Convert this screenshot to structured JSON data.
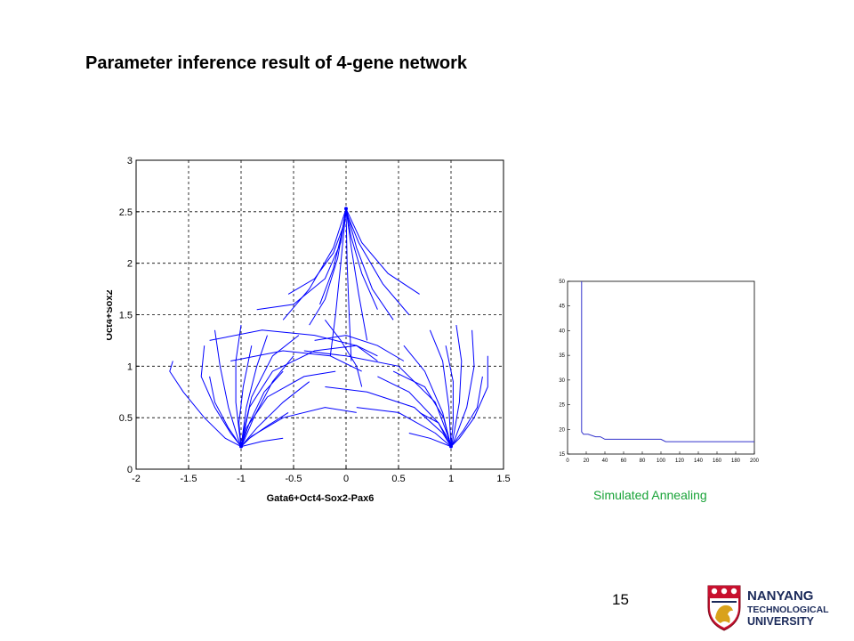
{
  "slide": {
    "title": "Parameter inference result of 4-gene network",
    "page_number": "15",
    "caption": "Simulated Annealing"
  },
  "logo": {
    "line1": "NANYANG",
    "line2": "TECHNOLOGICAL",
    "line3": "UNIVERSITY",
    "colors": {
      "red": "#c8102e",
      "navy": "#1b2a5a",
      "gold": "#d9a21b"
    }
  },
  "chart_data": [
    {
      "type": "line",
      "title": "",
      "xlabel": "Gata6+Oct4-Sox2-Pax6",
      "ylabel": "Oct4+Sox2",
      "xlim": [
        -2,
        1.5
      ],
      "ylim": [
        0,
        3
      ],
      "xticks": [
        "-2",
        "-1.5",
        "-1",
        "-0.5",
        "0",
        "0.5",
        "1",
        "1.5"
      ],
      "yticks": [
        "0",
        "0.5",
        "1",
        "1.5",
        "2",
        "2.5",
        "3"
      ],
      "grid": true,
      "grid_style": "dotted",
      "line_color": "#0000ff",
      "attractors": [
        [
          0,
          2.53
        ],
        [
          -1,
          0.22
        ],
        [
          1,
          0.22
        ]
      ],
      "series": [
        {
          "values": [
            [
              -1.65,
              1.05
            ],
            [
              -1.68,
              0.95
            ],
            [
              -1.55,
              0.75
            ],
            [
              -1.35,
              0.5
            ],
            [
              -1.15,
              0.3
            ],
            [
              -1,
              0.22
            ]
          ]
        },
        {
          "values": [
            [
              -1.35,
              1.2
            ],
            [
              -1.38,
              0.9
            ],
            [
              -1.25,
              0.6
            ],
            [
              -1.1,
              0.35
            ],
            [
              -1,
              0.22
            ]
          ]
        },
        {
          "values": [
            [
              -1.25,
              1.35
            ],
            [
              -1.2,
              1.0
            ],
            [
              -1.12,
              0.6
            ],
            [
              -1.03,
              0.3
            ],
            [
              -1,
              0.22
            ]
          ]
        },
        {
          "values": [
            [
              -1.0,
              1.4
            ],
            [
              -1.05,
              1.05
            ],
            [
              -1.05,
              0.65
            ],
            [
              -1.01,
              0.3
            ],
            [
              -1,
              0.22
            ]
          ]
        },
        {
          "values": [
            [
              -0.75,
              1.3
            ],
            [
              -0.85,
              1.0
            ],
            [
              -0.95,
              0.6
            ],
            [
              -0.99,
              0.3
            ],
            [
              -1,
              0.22
            ]
          ]
        },
        {
          "values": [
            [
              -0.5,
              1.1
            ],
            [
              -0.7,
              0.85
            ],
            [
              -0.88,
              0.5
            ],
            [
              -0.97,
              0.28
            ],
            [
              -1,
              0.22
            ]
          ]
        },
        {
          "values": [
            [
              -0.35,
              0.85
            ],
            [
              -0.6,
              0.65
            ],
            [
              -0.85,
              0.4
            ],
            [
              -1,
              0.22
            ]
          ]
        },
        {
          "values": [
            [
              -0.55,
              0.55
            ],
            [
              -0.75,
              0.42
            ],
            [
              -0.92,
              0.3
            ],
            [
              -1,
              0.22
            ]
          ]
        },
        {
          "values": [
            [
              -0.6,
              0.3
            ],
            [
              -0.8,
              0.27
            ],
            [
              -1,
              0.22
            ]
          ]
        },
        {
          "values": [
            [
              -1.3,
              0.9
            ],
            [
              -1.25,
              0.65
            ],
            [
              -1.12,
              0.4
            ],
            [
              -1,
              0.22
            ]
          ]
        },
        {
          "values": [
            [
              -0.9,
              1.2
            ],
            [
              -0.98,
              0.8
            ],
            [
              -1.02,
              0.45
            ],
            [
              -1,
              0.22
            ]
          ]
        },
        {
          "values": [
            [
              -0.6,
              0.95
            ],
            [
              -0.78,
              0.75
            ],
            [
              -0.92,
              0.45
            ],
            [
              -1,
              0.22
            ]
          ]
        },
        {
          "values": [
            [
              -0.45,
              1.3
            ],
            [
              -0.7,
              1.1
            ],
            [
              -0.9,
              0.7
            ],
            [
              -0.98,
              0.35
            ],
            [
              -1,
              0.22
            ]
          ]
        },
        {
          "values": [
            [
              0.3,
              1.1
            ],
            [
              0.1,
              1.2
            ],
            [
              -0.3,
              1.15
            ],
            [
              -0.7,
              0.95
            ],
            [
              -0.92,
              0.6
            ],
            [
              -1,
              0.22
            ]
          ]
        },
        {
          "values": [
            [
              -0.1,
              0.95
            ],
            [
              -0.4,
              0.9
            ],
            [
              -0.75,
              0.7
            ],
            [
              -0.95,
              0.4
            ],
            [
              -1,
              0.22
            ]
          ]
        },
        {
          "values": [
            [
              0.1,
              0.55
            ],
            [
              -0.2,
              0.6
            ],
            [
              -0.6,
              0.5
            ],
            [
              -0.9,
              0.32
            ],
            [
              -1,
              0.22
            ]
          ]
        },
        {
          "values": [
            [
              1.35,
              1.1
            ],
            [
              1.35,
              0.8
            ],
            [
              1.22,
              0.5
            ],
            [
              1.08,
              0.3
            ],
            [
              1,
              0.22
            ]
          ]
        },
        {
          "values": [
            [
              1.2,
              1.35
            ],
            [
              1.22,
              1.0
            ],
            [
              1.15,
              0.6
            ],
            [
              1.04,
              0.3
            ],
            [
              1,
              0.22
            ]
          ]
        },
        {
          "values": [
            [
              1.05,
              1.4
            ],
            [
              1.1,
              1.05
            ],
            [
              1.08,
              0.65
            ],
            [
              1.02,
              0.3
            ],
            [
              1,
              0.22
            ]
          ]
        },
        {
          "values": [
            [
              0.8,
              1.35
            ],
            [
              0.92,
              1.05
            ],
            [
              0.98,
              0.6
            ],
            [
              1,
              0.22
            ]
          ]
        },
        {
          "values": [
            [
              0.55,
              1.2
            ],
            [
              0.75,
              0.95
            ],
            [
              0.92,
              0.55
            ],
            [
              1,
              0.22
            ]
          ]
        },
        {
          "values": [
            [
              0.3,
              0.9
            ],
            [
              0.6,
              0.75
            ],
            [
              0.88,
              0.45
            ],
            [
              1,
              0.22
            ]
          ]
        },
        {
          "values": [
            [
              0.1,
              0.6
            ],
            [
              0.5,
              0.55
            ],
            [
              0.85,
              0.35
            ],
            [
              1,
              0.22
            ]
          ]
        },
        {
          "values": [
            [
              -0.2,
              0.8
            ],
            [
              0.2,
              0.75
            ],
            [
              0.65,
              0.6
            ],
            [
              0.92,
              0.35
            ],
            [
              1,
              0.22
            ]
          ]
        },
        {
          "values": [
            [
              -0.4,
              1.15
            ],
            [
              0.0,
              1.1
            ],
            [
              0.5,
              1.0
            ],
            [
              0.85,
              0.65
            ],
            [
              0.98,
              0.3
            ],
            [
              1,
              0.22
            ]
          ]
        },
        {
          "values": [
            [
              0.6,
              0.35
            ],
            [
              0.8,
              0.3
            ],
            [
              1,
              0.22
            ]
          ]
        },
        {
          "values": [
            [
              1.3,
              0.9
            ],
            [
              1.25,
              0.6
            ],
            [
              1.12,
              0.38
            ],
            [
              1,
              0.22
            ]
          ]
        },
        {
          "values": [
            [
              0.95,
              1.2
            ],
            [
              1.02,
              0.85
            ],
            [
              1.02,
              0.45
            ],
            [
              1,
              0.22
            ]
          ]
        },
        {
          "values": [
            [
              0.45,
              0.95
            ],
            [
              0.75,
              0.8
            ],
            [
              0.93,
              0.5
            ],
            [
              1,
              0.22
            ]
          ]
        },
        {
          "values": [
            [
              0.7,
              0.55
            ],
            [
              0.88,
              0.45
            ],
            [
              0.97,
              0.3
            ],
            [
              1,
              0.22
            ]
          ]
        },
        {
          "values": [
            [
              -0.85,
              1.55
            ],
            [
              -0.5,
              1.6
            ],
            [
              -0.2,
              1.85
            ],
            [
              -0.05,
              2.2
            ],
            [
              0,
              2.53
            ]
          ]
        },
        {
          "values": [
            [
              -0.55,
              1.7
            ],
            [
              -0.3,
              1.85
            ],
            [
              -0.12,
              2.1
            ],
            [
              -0.03,
              2.35
            ],
            [
              0,
              2.53
            ]
          ]
        },
        {
          "values": [
            [
              -0.35,
              1.4
            ],
            [
              -0.2,
              1.65
            ],
            [
              -0.08,
              2.05
            ],
            [
              0,
              2.53
            ]
          ]
        },
        {
          "values": [
            [
              -0.15,
              1.1
            ],
            [
              -0.1,
              1.5
            ],
            [
              -0.05,
              2.0
            ],
            [
              0,
              2.53
            ]
          ]
        },
        {
          "values": [
            [
              0.05,
              1.05
            ],
            [
              0.03,
              1.5
            ],
            [
              0.01,
              2.0
            ],
            [
              0,
              2.53
            ]
          ]
        },
        {
          "values": [
            [
              0.2,
              1.25
            ],
            [
              0.12,
              1.7
            ],
            [
              0.05,
              2.15
            ],
            [
              0,
              2.53
            ]
          ]
        },
        {
          "values": [
            [
              0.45,
              1.45
            ],
            [
              0.25,
              1.75
            ],
            [
              0.1,
              2.15
            ],
            [
              0,
              2.53
            ]
          ]
        },
        {
          "values": [
            [
              0.7,
              1.7
            ],
            [
              0.4,
              1.9
            ],
            [
              0.15,
              2.2
            ],
            [
              0,
              2.53
            ]
          ]
        },
        {
          "values": [
            [
              0.6,
              1.5
            ],
            [
              0.35,
              1.8
            ],
            [
              0.12,
              2.2
            ],
            [
              0.02,
              2.45
            ],
            [
              0,
              2.53
            ]
          ]
        },
        {
          "values": [
            [
              -0.6,
              1.45
            ],
            [
              -0.35,
              1.75
            ],
            [
              -0.12,
              2.15
            ],
            [
              0,
              2.53
            ]
          ]
        },
        {
          "values": [
            [
              0.3,
              1.55
            ],
            [
              0.15,
              1.9
            ],
            [
              0.05,
              2.25
            ],
            [
              0,
              2.53
            ]
          ]
        },
        {
          "values": [
            [
              -0.25,
              1.6
            ],
            [
              -0.12,
              1.95
            ],
            [
              -0.04,
              2.3
            ],
            [
              0,
              2.53
            ]
          ]
        },
        {
          "values": [
            [
              -1.3,
              1.25
            ],
            [
              -0.8,
              1.35
            ],
            [
              -0.3,
              1.3
            ],
            [
              0.1,
              1.2
            ],
            [
              0.3,
              1.05
            ]
          ]
        },
        {
          "values": [
            [
              -1.1,
              1.05
            ],
            [
              -0.6,
              1.15
            ],
            [
              -0.15,
              1.1
            ],
            [
              0.15,
              0.95
            ]
          ]
        },
        {
          "values": [
            [
              -0.2,
              1.45
            ],
            [
              -0.05,
              1.25
            ],
            [
              0.1,
              1.0
            ],
            [
              0.15,
              0.8
            ]
          ]
        },
        {
          "values": [
            [
              0.55,
              1.05
            ],
            [
              0.3,
              1.2
            ],
            [
              0.0,
              1.3
            ],
            [
              -0.3,
              1.25
            ]
          ]
        }
      ]
    },
    {
      "type": "line",
      "title": "",
      "xlabel": "",
      "ylabel": "",
      "xlim": [
        0,
        200
      ],
      "ylim": [
        15,
        50
      ],
      "xticks": [
        "0",
        "20",
        "40",
        "60",
        "80",
        "100",
        "120",
        "140",
        "160",
        "180",
        "200"
      ],
      "yticks": [
        "15",
        "20",
        "25",
        "30",
        "35",
        "40",
        "45",
        "50"
      ],
      "grid": false,
      "line_color": "#3333cc",
      "series": [
        {
          "x": [
            15,
            15,
            17,
            22,
            30,
            35,
            40,
            100,
            105,
            200
          ],
          "y": [
            50,
            19.5,
            19.0,
            19.0,
            18.5,
            18.5,
            18.0,
            18.0,
            17.5,
            17.5
          ]
        }
      ]
    }
  ]
}
